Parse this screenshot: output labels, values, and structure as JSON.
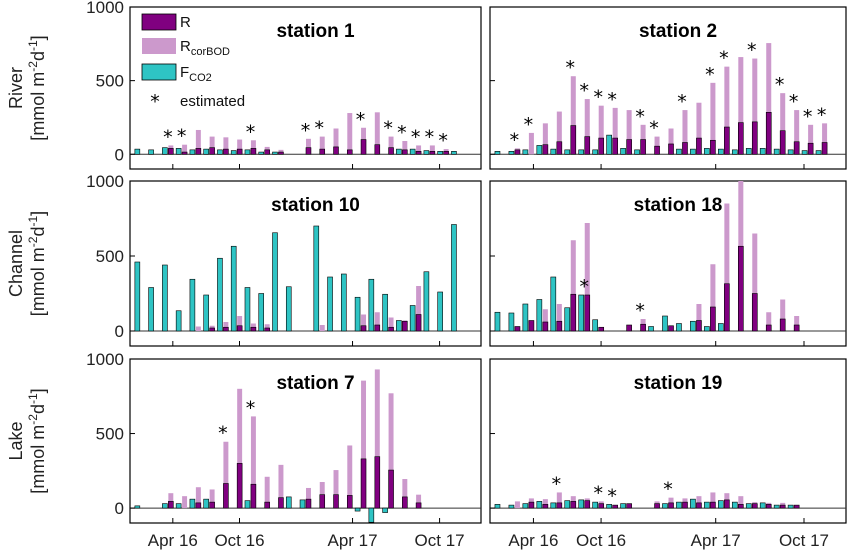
{
  "colors": {
    "R": "#800080",
    "R_corBOD": "#cc99cc",
    "F_CO2": "#2ec4c4",
    "axis": "#000000",
    "zero": "#333333"
  },
  "row_labels": [
    {
      "name": "River",
      "unit_pre": "[mmol m",
      "unit_e1": "-2",
      "unit_mid": "d",
      "unit_e2": "-1",
      "unit_post": "]"
    },
    {
      "name": "Channel",
      "unit_pre": "[mmol m",
      "unit_e1": "-2",
      "unit_mid": "d",
      "unit_e2": "-1",
      "unit_post": "]"
    },
    {
      "name": "Lake",
      "unit_pre": "[mmol m",
      "unit_e1": "-2",
      "unit_mid": "d",
      "unit_e2": "-1",
      "unit_post": "]"
    }
  ],
  "legend": {
    "items": [
      {
        "label": "R",
        "sub": ""
      },
      {
        "label": "R",
        "sub": "corBOD"
      },
      {
        "label": "F",
        "sub": "CO2"
      },
      {
        "label": "estimated",
        "sub": ""
      }
    ]
  },
  "x_ticks": [
    "Apr 16",
    "Oct 16",
    "Apr 17",
    "Oct 17"
  ],
  "y_ticks": [
    "0",
    "500",
    "1000"
  ],
  "chart_data": [
    {
      "type": "bar",
      "title": "station 1",
      "ylim": [
        -100,
        1000
      ],
      "x": [
        1,
        2,
        3,
        4,
        5,
        6,
        7,
        8,
        9,
        10,
        11,
        12,
        13,
        14,
        15,
        16,
        17,
        18,
        19,
        20,
        21,
        22,
        23,
        24,
        25
      ],
      "series": [
        {
          "name": "F_CO2",
          "values": [
            35,
            30,
            45,
            40,
            30,
            35,
            30,
            25,
            30,
            15,
            15,
            null,
            null,
            null,
            null,
            null,
            null,
            null,
            null,
            35,
            35,
            25,
            20,
            20,
            null
          ]
        },
        {
          "name": "R",
          "values": [
            null,
            null,
            40,
            15,
            40,
            45,
            35,
            35,
            40,
            30,
            15,
            null,
            45,
            35,
            50,
            30,
            100,
            65,
            45,
            30,
            20,
            20,
            20,
            null,
            null
          ]
        },
        {
          "name": "R_corBOD",
          "values": [
            null,
            null,
            60,
            65,
            165,
            120,
            115,
            100,
            95,
            50,
            30,
            null,
            105,
            120,
            175,
            280,
            180,
            285,
            120,
            90,
            60,
            60,
            35,
            null,
            null
          ]
        }
      ],
      "estimated": [
        3,
        4,
        9,
        13,
        14,
        17,
        19,
        20,
        21,
        22,
        23
      ]
    },
    {
      "type": "bar",
      "title": "station 2",
      "ylim": [
        -100,
        1000
      ],
      "x": [
        1,
        2,
        3,
        4,
        5,
        6,
        7,
        8,
        9,
        10,
        11,
        12,
        13,
        14,
        15,
        16,
        17,
        18,
        19,
        20,
        21,
        22,
        23,
        24,
        25
      ],
      "series": [
        {
          "name": "F_CO2",
          "values": [
            20,
            20,
            30,
            60,
            35,
            30,
            30,
            30,
            130,
            40,
            30,
            null,
            null,
            35,
            35,
            40,
            35,
            30,
            40,
            40,
            35,
            30,
            25,
            25,
            null
          ]
        },
        {
          "name": "R",
          "values": [
            null,
            30,
            null,
            65,
            85,
            195,
            120,
            110,
            110,
            100,
            100,
            55,
            70,
            80,
            110,
            95,
            185,
            215,
            220,
            285,
            160,
            85,
            75,
            80,
            null
          ]
        },
        {
          "name": "R_corBOD",
          "values": [
            null,
            40,
            145,
            210,
            290,
            530,
            375,
            330,
            315,
            300,
            200,
            120,
            175,
            300,
            350,
            485,
            595,
            660,
            650,
            755,
            415,
            300,
            200,
            210,
            null
          ]
        }
      ],
      "estimated": [
        2,
        3,
        6,
        7,
        8,
        9,
        11,
        12,
        14,
        16,
        17,
        19,
        21,
        22,
        23,
        24
      ]
    },
    {
      "type": "bar",
      "title": "station 10",
      "ylim": [
        -100,
        1000
      ],
      "x": [
        1,
        2,
        3,
        4,
        5,
        6,
        7,
        8,
        9,
        10,
        11,
        12,
        13,
        14,
        15,
        16,
        17,
        18,
        19,
        20,
        21,
        22,
        23,
        24,
        25
      ],
      "series": [
        {
          "name": "F_CO2",
          "values": [
            460,
            290,
            440,
            135,
            345,
            240,
            485,
            565,
            290,
            250,
            655,
            295,
            null,
            700,
            360,
            380,
            225,
            345,
            245,
            70,
            170,
            395,
            260,
            710,
            null
          ]
        },
        {
          "name": "R",
          "values": [
            null,
            null,
            null,
            null,
            null,
            20,
            25,
            35,
            25,
            20,
            null,
            null,
            null,
            null,
            null,
            null,
            35,
            40,
            25,
            65,
            110,
            null,
            null,
            null,
            null
          ]
        },
        {
          "name": "R_corBOD",
          "values": [
            null,
            null,
            null,
            null,
            30,
            35,
            60,
            100,
            50,
            45,
            null,
            null,
            null,
            40,
            null,
            null,
            110,
            125,
            90,
            70,
            300,
            null,
            null,
            null,
            null
          ]
        }
      ],
      "estimated": []
    },
    {
      "type": "bar",
      "title": "station 18",
      "ylim": [
        -100,
        1000
      ],
      "x": [
        1,
        2,
        3,
        4,
        5,
        6,
        7,
        8,
        9,
        10,
        11,
        12,
        13,
        14,
        15,
        16,
        17,
        18,
        19,
        20,
        21,
        22,
        23,
        24,
        25
      ],
      "series": [
        {
          "name": "F_CO2",
          "values": [
            125,
            120,
            180,
            210,
            360,
            155,
            240,
            75,
            null,
            null,
            null,
            30,
            100,
            50,
            65,
            30,
            50,
            null,
            null,
            null,
            null,
            null,
            null,
            null,
            null
          ]
        },
        {
          "name": "R",
          "values": [
            null,
            30,
            70,
            60,
            65,
            245,
            240,
            25,
            null,
            40,
            45,
            null,
            35,
            null,
            70,
            160,
            315,
            565,
            250,
            40,
            80,
            40,
            null,
            null,
            null
          ]
        },
        {
          "name": "R_corBOD",
          "values": [
            null,
            null,
            null,
            145,
            180,
            605,
            720,
            null,
            null,
            null,
            80,
            null,
            null,
            null,
            180,
            445,
            850,
            1000,
            650,
            125,
            210,
            100,
            null,
            null,
            null
          ]
        }
      ],
      "estimated": [
        7,
        11
      ]
    },
    {
      "type": "bar",
      "title": "station 7",
      "ylim": [
        -100,
        1000
      ],
      "x": [
        1,
        2,
        3,
        4,
        5,
        6,
        7,
        8,
        9,
        10,
        11,
        12,
        13,
        14,
        15,
        16,
        17,
        18,
        19,
        20,
        21,
        22,
        23,
        24,
        25
      ],
      "series": [
        {
          "name": "F_CO2",
          "values": [
            15,
            null,
            30,
            30,
            60,
            60,
            null,
            null,
            50,
            null,
            null,
            75,
            55,
            null,
            null,
            null,
            -20,
            -95,
            -30,
            null,
            null,
            null,
            null,
            null,
            null
          ]
        },
        {
          "name": "R",
          "values": [
            null,
            null,
            45,
            null,
            35,
            40,
            165,
            300,
            160,
            40,
            70,
            null,
            60,
            90,
            90,
            85,
            330,
            345,
            255,
            75,
            35,
            null,
            null,
            null,
            null
          ]
        },
        {
          "name": "R_corBOD",
          "values": [
            null,
            null,
            100,
            80,
            140,
            125,
            445,
            800,
            615,
            210,
            290,
            null,
            135,
            175,
            255,
            420,
            855,
            930,
            770,
            195,
            90,
            null,
            null,
            null,
            null
          ]
        }
      ],
      "estimated": [
        7,
        9
      ]
    },
    {
      "type": "bar",
      "title": "station 19",
      "ylim": [
        -100,
        1000
      ],
      "x": [
        1,
        2,
        3,
        4,
        5,
        6,
        7,
        8,
        9,
        10,
        11,
        12,
        13,
        14,
        15,
        16,
        17,
        18,
        19,
        20,
        21,
        22,
        23,
        24,
        25
      ],
      "series": [
        {
          "name": "F_CO2",
          "values": [
            25,
            20,
            30,
            45,
            35,
            50,
            55,
            40,
            25,
            30,
            null,
            null,
            30,
            40,
            60,
            40,
            50,
            40,
            30,
            35,
            20,
            20,
            null,
            null,
            null
          ]
        },
        {
          "name": "R",
          "values": [
            null,
            null,
            40,
            25,
            35,
            45,
            50,
            30,
            20,
            30,
            null,
            30,
            35,
            40,
            35,
            40,
            55,
            25,
            30,
            25,
            20,
            20,
            null,
            null,
            null
          ]
        },
        {
          "name": "R_corBOD",
          "values": [
            null,
            45,
            65,
            60,
            105,
            80,
            65,
            45,
            null,
            null,
            null,
            45,
            70,
            65,
            80,
            105,
            100,
            80,
            40,
            35,
            35,
            null,
            null,
            null,
            null
          ]
        }
      ],
      "estimated": [
        5,
        8,
        9,
        13
      ]
    }
  ]
}
